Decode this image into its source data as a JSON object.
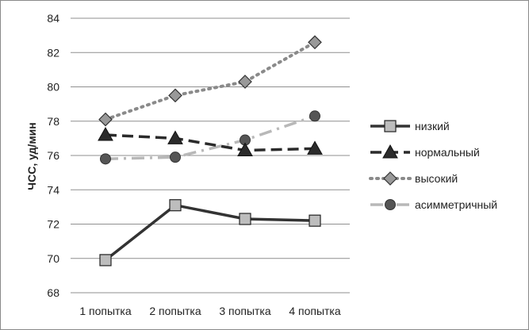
{
  "chart_data": {
    "type": "line",
    "categories": [
      "1 попытка",
      "2 попытка",
      "3 попытка",
      "4 попытка"
    ],
    "ylabel": "ЧСС, уд/мин",
    "xlabel": "",
    "ylim": [
      68,
      84
    ],
    "yticks": [
      68,
      70,
      72,
      74,
      76,
      78,
      80,
      82,
      84
    ],
    "grid": true,
    "legend_position": "right",
    "series": [
      {
        "name": "низкий",
        "values": [
          69.9,
          73.1,
          72.3,
          72.2
        ],
        "color": "#333333",
        "dash": "solid",
        "marker": "square",
        "marker_fill": "#bdbdbd"
      },
      {
        "name": "нормальный",
        "values": [
          77.2,
          77.0,
          76.3,
          76.4
        ],
        "color": "#2b2b2b",
        "dash": "dashed",
        "marker": "triangle",
        "marker_fill": "#2b2b2b"
      },
      {
        "name": "высокий",
        "values": [
          78.1,
          79.5,
          80.3,
          82.6
        ],
        "color": "#8a8a8a",
        "dash": "dotted",
        "marker": "diamond",
        "marker_fill": "#999999"
      },
      {
        "name": "асимметричный",
        "values": [
          75.8,
          75.9,
          76.9,
          78.3
        ],
        "color": "#b8b8b8",
        "dash": "dashdot",
        "marker": "circle",
        "marker_fill": "#555555"
      }
    ]
  }
}
